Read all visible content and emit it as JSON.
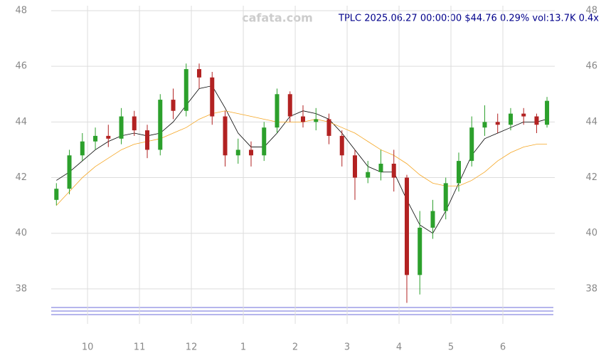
{
  "chart_data": {
    "type": "candlestick",
    "title": "TPLC 2025.06.27 00:00:00 $44.76 0.29% vol:13.7K 0.4x",
    "watermark": "cafata.com",
    "x": [
      -0.6,
      -0.35,
      -0.1,
      0.15,
      0.4,
      0.65,
      0.9,
      1.15,
      1.4,
      1.65,
      1.9,
      2.15,
      2.4,
      2.65,
      2.9,
      3.15,
      3.4,
      3.65,
      3.9,
      4.15,
      4.4,
      4.65,
      4.9,
      5.15,
      5.4,
      5.65,
      5.9,
      6.15,
      6.4,
      6.65,
      6.9,
      7.15,
      7.4,
      7.65,
      7.9,
      8.15,
      8.4,
      8.65,
      8.85
    ],
    "open": [
      41.2,
      41.6,
      42.8,
      43.3,
      43.5,
      43.4,
      44.2,
      43.7,
      43.0,
      44.8,
      44.4,
      45.9,
      45.6,
      44.2,
      42.8,
      43.0,
      42.8,
      43.8,
      45.0,
      44.2,
      44.0,
      44.1,
      43.5,
      42.8,
      42.0,
      42.2,
      42.5,
      42.0,
      38.5,
      40.2,
      40.8,
      41.8,
      42.6,
      43.8,
      44.0,
      43.9,
      44.3,
      44.2,
      43.9
    ],
    "high": [
      41.8,
      43.0,
      43.6,
      43.8,
      43.9,
      44.5,
      44.4,
      43.9,
      45.0,
      45.2,
      46.1,
      46.1,
      45.8,
      44.4,
      43.4,
      43.3,
      44.0,
      45.2,
      45.1,
      44.6,
      44.5,
      44.3,
      43.7,
      43.0,
      42.6,
      43.0,
      43.0,
      42.1,
      40.8,
      41.2,
      42.0,
      42.9,
      44.2,
      44.6,
      44.3,
      44.5,
      44.5,
      44.3,
      44.9
    ],
    "low": [
      41.0,
      41.4,
      42.6,
      43.0,
      43.1,
      43.2,
      43.5,
      42.7,
      42.8,
      44.1,
      44.2,
      45.2,
      43.9,
      42.4,
      42.5,
      42.4,
      42.6,
      43.6,
      44.0,
      43.8,
      43.7,
      43.2,
      42.4,
      41.2,
      41.8,
      41.9,
      41.5,
      37.5,
      37.8,
      39.8,
      40.5,
      41.5,
      42.4,
      43.5,
      43.6,
      43.7,
      43.9,
      43.6,
      43.8
    ],
    "close": [
      41.6,
      42.8,
      43.3,
      43.5,
      43.4,
      44.2,
      43.7,
      43.0,
      44.8,
      44.4,
      45.9,
      45.6,
      44.2,
      42.8,
      43.0,
      42.8,
      43.8,
      45.0,
      44.2,
      44.0,
      44.1,
      43.5,
      42.8,
      42.0,
      42.2,
      42.5,
      42.0,
      38.5,
      40.2,
      40.8,
      41.8,
      42.6,
      43.8,
      44.0,
      43.9,
      44.3,
      44.2,
      43.9,
      44.76
    ],
    "up_color": "#2ca02c",
    "down_color": "#b22222",
    "lines": [
      {
        "color": "#000000",
        "values": [
          41.9,
          42.2,
          42.6,
          43.0,
          43.3,
          43.5,
          43.6,
          43.5,
          43.6,
          44.0,
          44.6,
          45.2,
          45.3,
          44.5,
          43.6,
          43.1,
          43.1,
          43.6,
          44.2,
          44.4,
          44.3,
          44.1,
          43.6,
          43.0,
          42.4,
          42.2,
          42.2,
          41.2,
          40.3,
          40.0,
          40.8,
          41.8,
          42.8,
          43.4,
          43.6,
          43.8,
          44.0,
          44.0,
          44.1
        ]
      },
      {
        "color": "#f5a623",
        "values": [
          41.0,
          41.5,
          42.0,
          42.4,
          42.7,
          43.0,
          43.2,
          43.3,
          43.4,
          43.6,
          43.8,
          44.1,
          44.3,
          44.4,
          44.3,
          44.2,
          44.1,
          44.0,
          44.0,
          44.0,
          44.1,
          44.0,
          43.8,
          43.6,
          43.3,
          43.0,
          42.8,
          42.5,
          42.1,
          41.8,
          41.7,
          41.7,
          41.9,
          42.2,
          42.6,
          42.9,
          43.1,
          43.2,
          43.2
        ]
      }
    ],
    "xlim": [
      -0.7,
      9.0
    ],
    "ylim": [
      37,
      48
    ],
    "xticks": [
      {
        "value": 0,
        "label": "10"
      },
      {
        "value": 1,
        "label": "11"
      },
      {
        "value": 2,
        "label": "12"
      },
      {
        "value": 3,
        "label": "1"
      },
      {
        "value": 4,
        "label": "2"
      },
      {
        "value": 5,
        "label": "3"
      },
      {
        "value": 6,
        "label": "4"
      },
      {
        "value": 7,
        "label": "5"
      },
      {
        "value": 8,
        "label": "6"
      }
    ],
    "yticks": [
      38,
      40,
      42,
      44,
      46,
      48
    ],
    "grid": true
  }
}
